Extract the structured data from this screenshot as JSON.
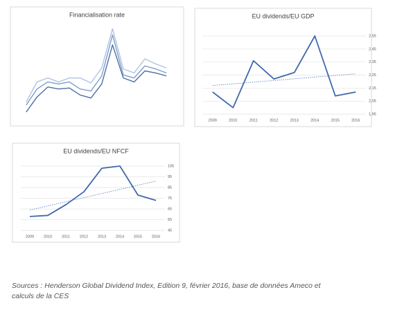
{
  "chart_data": [
    {
      "type": "line",
      "title": "Financialisation rate",
      "categories": [
        null,
        null,
        null,
        null,
        null,
        null,
        null,
        null,
        null,
        null,
        null,
        null,
        null,
        null
      ],
      "ylim": [
        0,
        100
      ],
      "grid": true,
      "series": [
        {
          "color": "#4d6fa3",
          "values": [
            9,
            24,
            34,
            32,
            33,
            26,
            23,
            37,
            76,
            43,
            39,
            50,
            48,
            45
          ]
        },
        {
          "color": "#7f9ccb",
          "values": [
            16,
            32,
            39,
            37,
            39,
            32,
            30,
            45,
            86,
            46,
            43,
            55,
            52,
            48
          ]
        },
        {
          "color": "#aec3e2",
          "values": [
            19,
            39,
            43,
            39,
            43,
            43,
            38,
            53,
            92,
            52,
            48,
            62,
            57,
            53
          ]
        }
      ]
    },
    {
      "type": "line",
      "title": "EU dividends/EU GDP",
      "categories": [
        "2009",
        "2010",
        "2011",
        "2012",
        "2013",
        "2014",
        "2015",
        "2016"
      ],
      "ylim": [
        1.95,
        2.55
      ],
      "grid": true,
      "yticks": [
        {
          "value": 1.95,
          "label": "1,95"
        },
        {
          "value": 2.05,
          "label": "2,05"
        },
        {
          "value": 2.15,
          "label": "2,15"
        },
        {
          "value": 2.25,
          "label": "2,25"
        },
        {
          "value": 2.35,
          "label": "2,35"
        },
        {
          "value": 2.45,
          "label": "2,45"
        },
        {
          "value": 2.55,
          "label": "2,55"
        }
      ],
      "series": [
        {
          "color": "#3f68ad",
          "values": [
            2.12,
            2.0,
            2.36,
            2.22,
            2.27,
            2.55,
            2.09,
            2.12
          ]
        }
      ],
      "trend": {
        "color": "#6f94cf",
        "values": [
          2.17,
          2.26
        ]
      }
    },
    {
      "type": "line",
      "title": "EU dividends/EU NFCF",
      "categories": [
        "2009",
        "2010",
        "2011",
        "2012",
        "2013",
        "2014",
        "2015",
        "2016"
      ],
      "ylim": [
        45,
        105
      ],
      "grid": true,
      "yticks": [
        45,
        55,
        65,
        75,
        85,
        95,
        105
      ],
      "series": [
        {
          "color": "#3f68ad",
          "values": [
            58,
            59,
            69,
            81,
            103,
            105,
            78,
            73
          ]
        }
      ],
      "trend": {
        "color": "#6f94cf",
        "values": [
          64,
          91
        ]
      }
    }
  ],
  "source": [
    "Sources : Henderson Global Dividend Index, Edition 9, février 2016, base de données Ameco et",
    "calculs de la CES"
  ]
}
